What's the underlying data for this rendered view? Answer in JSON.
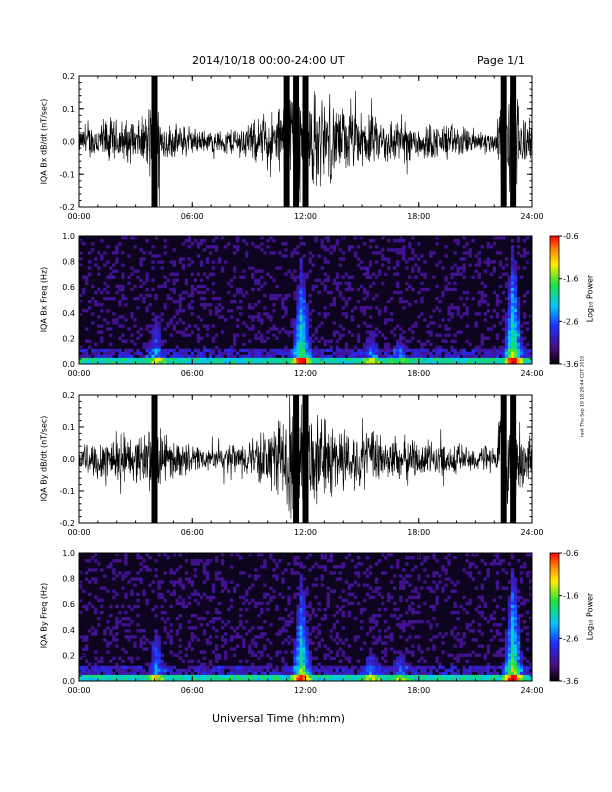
{
  "header": {
    "date_range": "2014/10/18   00:00-24:00 UT",
    "page": "Page 1/1"
  },
  "footer": {
    "xlabel": "Universal Time (hh:mm)",
    "side_note": "ravt Thu Sep 19 18:26:44 CDT 2019"
  },
  "chart_data": [
    {
      "type": "line",
      "ylabel": "IQA Bx dB/dt (nT/sec)",
      "xlim": [
        0,
        24
      ],
      "ylim": [
        -0.2,
        0.2
      ],
      "xticks": [
        "00:00",
        "06:00",
        "12:00",
        "18:00",
        "24:00"
      ],
      "yticks": [
        "0.2",
        "0.1",
        "0.0",
        "-0.1",
        "-0.2"
      ],
      "activity": [
        {
          "t": 0.0,
          "amp": 0.04
        },
        {
          "t": 0.5,
          "amp": 0.06
        },
        {
          "t": 1.0,
          "amp": 0.07
        },
        {
          "t": 1.5,
          "amp": 0.09
        },
        {
          "t": 2.0,
          "amp": 0.08
        },
        {
          "t": 2.5,
          "amp": 0.08
        },
        {
          "t": 3.0,
          "amp": 0.07
        },
        {
          "t": 3.5,
          "amp": 0.09
        },
        {
          "t": 4.0,
          "amp": 0.2
        },
        {
          "t": 4.5,
          "amp": 0.07
        },
        {
          "t": 5.0,
          "amp": 0.06
        },
        {
          "t": 5.5,
          "amp": 0.06
        },
        {
          "t": 6.0,
          "amp": 0.05
        },
        {
          "t": 6.5,
          "amp": 0.04
        },
        {
          "t": 7.0,
          "amp": 0.04
        },
        {
          "t": 7.5,
          "amp": 0.04
        },
        {
          "t": 8.0,
          "amp": 0.05
        },
        {
          "t": 8.5,
          "amp": 0.06
        },
        {
          "t": 9.0,
          "amp": 0.07
        },
        {
          "t": 9.5,
          "amp": 0.08
        },
        {
          "t": 10.0,
          "amp": 0.1
        },
        {
          "t": 10.5,
          "amp": 0.12
        },
        {
          "t": 11.0,
          "amp": 0.2
        },
        {
          "t": 11.5,
          "amp": 0.2
        },
        {
          "t": 12.0,
          "amp": 0.2
        },
        {
          "t": 12.5,
          "amp": 0.18
        },
        {
          "t": 13.0,
          "amp": 0.15
        },
        {
          "t": 13.5,
          "amp": 0.14
        },
        {
          "t": 14.0,
          "amp": 0.12
        },
        {
          "t": 14.5,
          "amp": 0.11
        },
        {
          "t": 15.0,
          "amp": 0.1
        },
        {
          "t": 15.5,
          "amp": 0.09
        },
        {
          "t": 16.0,
          "amp": 0.08
        },
        {
          "t": 16.5,
          "amp": 0.09
        },
        {
          "t": 17.0,
          "amp": 0.08
        },
        {
          "t": 17.5,
          "amp": 0.07
        },
        {
          "t": 18.0,
          "amp": 0.07
        },
        {
          "t": 18.5,
          "amp": 0.07
        },
        {
          "t": 19.0,
          "amp": 0.06
        },
        {
          "t": 19.5,
          "amp": 0.07
        },
        {
          "t": 20.0,
          "amp": 0.06
        },
        {
          "t": 20.5,
          "amp": 0.05
        },
        {
          "t": 21.0,
          "amp": 0.05
        },
        {
          "t": 21.5,
          "amp": 0.04
        },
        {
          "t": 22.0,
          "amp": 0.04
        },
        {
          "t": 22.5,
          "amp": 0.2
        },
        {
          "t": 23.0,
          "amp": 0.2
        },
        {
          "t": 23.5,
          "amp": 0.12
        },
        {
          "t": 24.0,
          "amp": 0.06
        }
      ]
    },
    {
      "type": "heatmap",
      "ylabel": "IQA Bx Freq (Hz)",
      "xlim": [
        0,
        24
      ],
      "ylim": [
        0,
        1
      ],
      "xticks": [
        "00:00",
        "06:00",
        "12:00",
        "18:00",
        "24:00"
      ],
      "yticks": [
        "1.0",
        "0.8",
        "0.6",
        "0.4",
        "0.2",
        "0.0"
      ],
      "colorbar": {
        "label": "Log₁₀ Power",
        "range": [
          -3.6,
          -0.6
        ],
        "ticks": [
          "-0.6",
          "-1.6",
          "-2.6",
          "-3.6"
        ]
      },
      "features": [
        {
          "t": 4.1,
          "fmax": 0.4
        },
        {
          "t": 11.8,
          "fmax": 0.9
        },
        {
          "t": 15.5,
          "fmax": 0.3
        },
        {
          "t": 17.0,
          "fmax": 0.25
        },
        {
          "t": 23.0,
          "fmax": 1.0
        }
      ]
    },
    {
      "type": "line",
      "ylabel": "IQA By dB/dt (nT/sec)",
      "xlim": [
        0,
        24
      ],
      "ylim": [
        -0.2,
        0.2
      ],
      "xticks": [
        "00:00",
        "06:00",
        "12:00",
        "18:00",
        "24:00"
      ],
      "yticks": [
        "0.2",
        "0.1",
        "0.0",
        "-0.1",
        "-0.2"
      ],
      "activity": [
        {
          "t": 0.0,
          "amp": 0.04
        },
        {
          "t": 0.5,
          "amp": 0.06
        },
        {
          "t": 1.0,
          "amp": 0.08
        },
        {
          "t": 1.5,
          "amp": 0.1
        },
        {
          "t": 2.0,
          "amp": 0.09
        },
        {
          "t": 2.5,
          "amp": 0.09
        },
        {
          "t": 3.0,
          "amp": 0.08
        },
        {
          "t": 3.5,
          "amp": 0.1
        },
        {
          "t": 4.0,
          "amp": 0.2
        },
        {
          "t": 4.5,
          "amp": 0.08
        },
        {
          "t": 5.0,
          "amp": 0.07
        },
        {
          "t": 5.5,
          "amp": 0.06
        },
        {
          "t": 6.0,
          "amp": 0.05
        },
        {
          "t": 6.5,
          "amp": 0.05
        },
        {
          "t": 7.0,
          "amp": 0.04
        },
        {
          "t": 7.5,
          "amp": 0.05
        },
        {
          "t": 8.0,
          "amp": 0.05
        },
        {
          "t": 8.5,
          "amp": 0.06
        },
        {
          "t": 9.0,
          "amp": 0.07
        },
        {
          "t": 9.5,
          "amp": 0.09
        },
        {
          "t": 10.0,
          "amp": 0.11
        },
        {
          "t": 10.5,
          "amp": 0.14
        },
        {
          "t": 11.0,
          "amp": 0.18
        },
        {
          "t": 11.5,
          "amp": 0.2
        },
        {
          "t": 12.0,
          "amp": 0.2
        },
        {
          "t": 12.5,
          "amp": 0.17
        },
        {
          "t": 13.0,
          "amp": 0.15
        },
        {
          "t": 13.5,
          "amp": 0.14
        },
        {
          "t": 14.0,
          "amp": 0.12
        },
        {
          "t": 14.5,
          "amp": 0.11
        },
        {
          "t": 15.0,
          "amp": 0.1
        },
        {
          "t": 15.5,
          "amp": 0.1
        },
        {
          "t": 16.0,
          "amp": 0.09
        },
        {
          "t": 16.5,
          "amp": 0.09
        },
        {
          "t": 17.0,
          "amp": 0.08
        },
        {
          "t": 17.5,
          "amp": 0.08
        },
        {
          "t": 18.0,
          "amp": 0.07
        },
        {
          "t": 18.5,
          "amp": 0.07
        },
        {
          "t": 19.0,
          "amp": 0.06
        },
        {
          "t": 19.5,
          "amp": 0.06
        },
        {
          "t": 20.0,
          "amp": 0.06
        },
        {
          "t": 20.5,
          "amp": 0.05
        },
        {
          "t": 21.0,
          "amp": 0.05
        },
        {
          "t": 21.5,
          "amp": 0.05
        },
        {
          "t": 22.0,
          "amp": 0.04
        },
        {
          "t": 22.5,
          "amp": 0.2
        },
        {
          "t": 23.0,
          "amp": 0.2
        },
        {
          "t": 23.5,
          "amp": 0.13
        },
        {
          "t": 24.0,
          "amp": 0.06
        }
      ]
    },
    {
      "type": "heatmap",
      "ylabel": "IQA By Freq (Hz)",
      "xlim": [
        0,
        24
      ],
      "ylim": [
        0,
        1
      ],
      "xticks": [
        "00:00",
        "06:00",
        "12:00",
        "18:00",
        "24:00"
      ],
      "yticks": [
        "1.0",
        "0.8",
        "0.6",
        "0.4",
        "0.2",
        "0.0"
      ],
      "colorbar": {
        "label": "Log₁₀ Power",
        "range": [
          -3.6,
          -0.6
        ],
        "ticks": [
          "-0.6",
          "-1.6",
          "-2.6",
          "-3.6"
        ]
      },
      "features": [
        {
          "t": 4.1,
          "fmax": 0.45
        },
        {
          "t": 11.8,
          "fmax": 0.9
        },
        {
          "t": 15.5,
          "fmax": 0.3
        },
        {
          "t": 17.0,
          "fmax": 0.3
        },
        {
          "t": 23.0,
          "fmax": 1.0
        }
      ]
    }
  ]
}
